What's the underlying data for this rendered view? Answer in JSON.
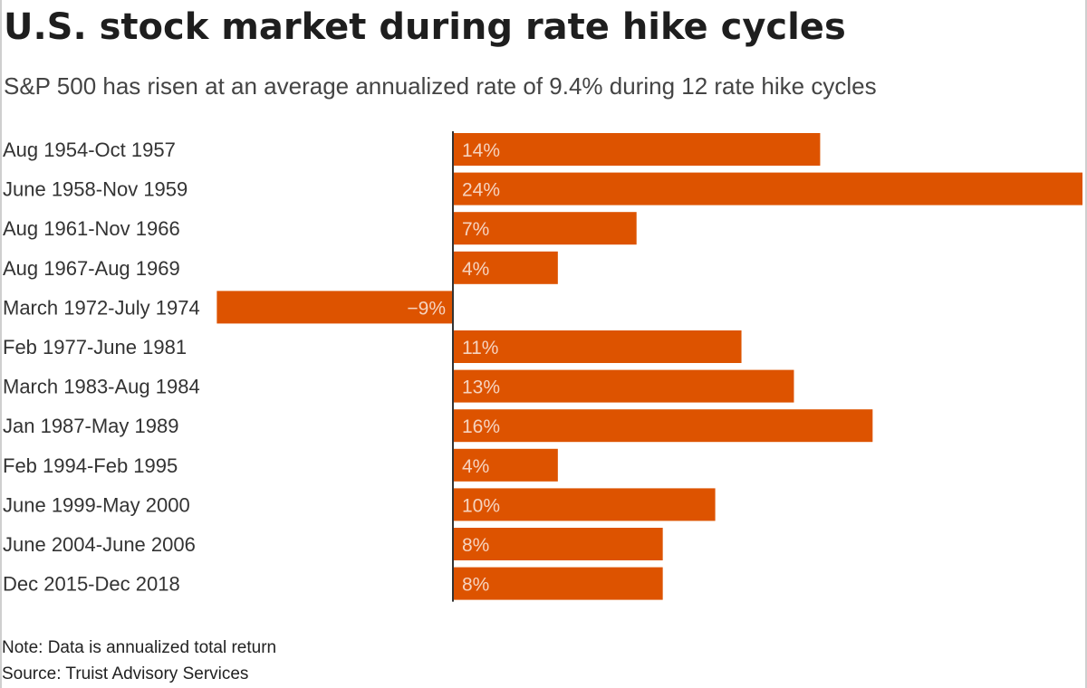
{
  "title": "U.S. stock market during rate hike cycles",
  "subtitle": "S&P 500 has risen at an average annualized rate of 9.4% during 12 rate hike cycles",
  "note": "Note: Data is annualized total return",
  "source": "Source: Truist Advisory Services",
  "colors": {
    "bar": "#dd5300",
    "bar_label": "#f6d3bf",
    "category_text": "#333333",
    "axis": "#333333"
  },
  "chart_data": {
    "type": "bar",
    "orientation": "horizontal",
    "title": "U.S. stock market during rate hike cycles",
    "subtitle": "S&P 500 has risen at an average annualized rate of 9.4% during 12 rate hike cycles",
    "categories": [
      "Aug 1954-Oct 1957",
      "June 1958-Nov 1959",
      "Aug 1961-Nov 1966",
      "Aug 1967-Aug 1969",
      "March 1972-July 1974",
      "Feb 1977-June 1981",
      "March 1983-Aug 1984",
      "Jan 1987-May 1989",
      "Feb 1994-Feb 1995",
      "June 1999-May 2000",
      "June 2004-June 2006",
      "Dec 2015-Dec 2018"
    ],
    "values": [
      14,
      24,
      7,
      4,
      -9,
      11,
      13,
      16,
      4,
      10,
      8,
      8
    ],
    "value_labels": [
      "14%",
      "24%",
      "7%",
      "4%",
      "−9%",
      "11%",
      "13%",
      "16%",
      "4%",
      "10%",
      "8%",
      "8%"
    ],
    "unit": "%",
    "xlim": [
      -9,
      24
    ],
    "grid": false,
    "legend": "none"
  }
}
